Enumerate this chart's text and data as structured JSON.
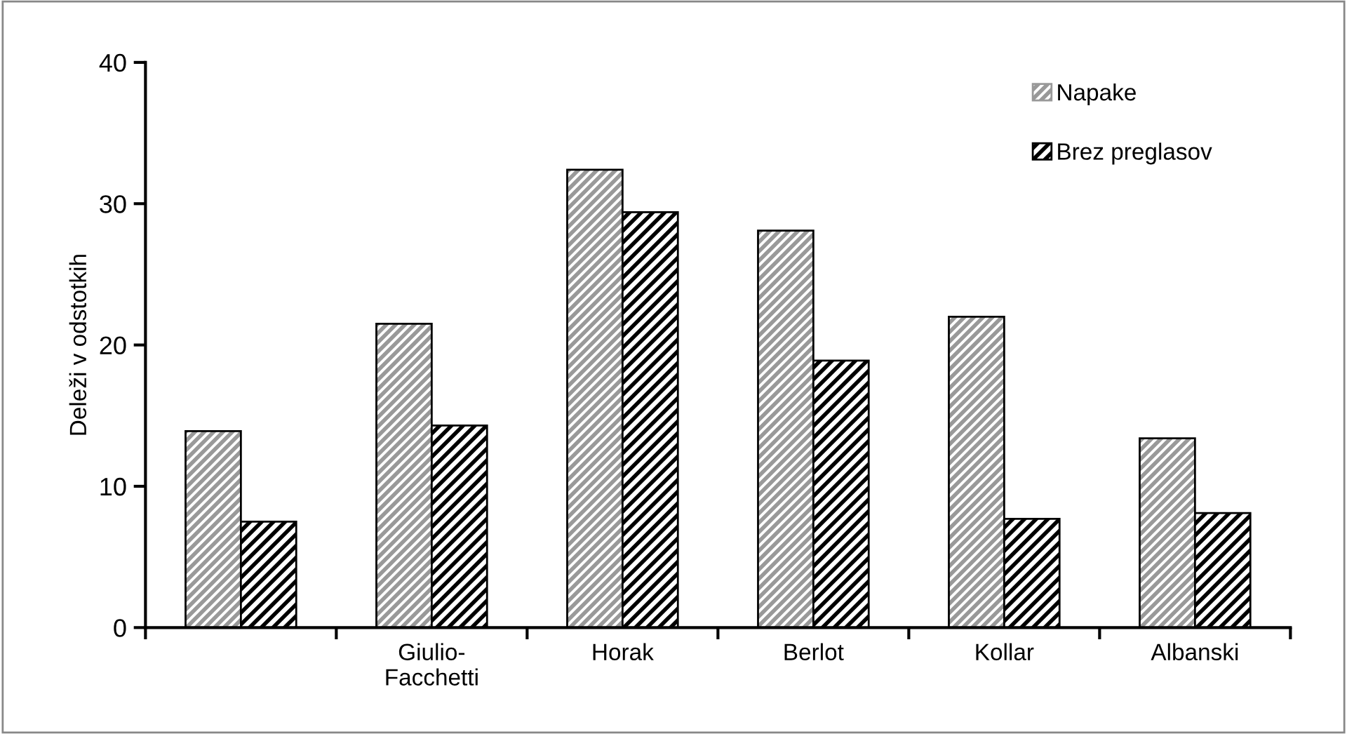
{
  "chart_data": {
    "type": "bar",
    "ylabel": "Deleži v odstotkih",
    "categories": [
      null,
      "Giulio-\nFacchetti",
      "Horak",
      "Berlot",
      "Kollar",
      "Albanski"
    ],
    "series": [
      {
        "name": "Napake",
        "color": "#999999",
        "values": [
          13.9,
          21.5,
          32.4,
          28.1,
          22.0,
          13.4
        ]
      },
      {
        "name": "Brez preglasov",
        "color": "#000000",
        "values": [
          7.5,
          14.3,
          29.4,
          18.9,
          7.7,
          8.1
        ]
      }
    ],
    "ylim": [
      0,
      40
    ],
    "yticks": [
      0,
      10,
      20,
      30,
      40
    ],
    "grid": false,
    "legend": "top right"
  }
}
